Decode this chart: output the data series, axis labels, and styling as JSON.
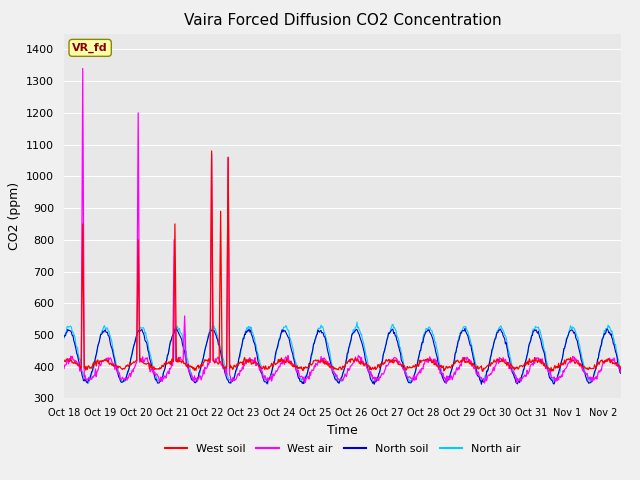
{
  "title": "Vaira Forced Diffusion CO2 Concentration",
  "xlabel": "Time",
  "ylabel": "CO2 (ppm)",
  "ylim": [
    300,
    1450
  ],
  "yticks": [
    300,
    400,
    500,
    600,
    700,
    800,
    900,
    1000,
    1100,
    1200,
    1300,
    1400
  ],
  "annotation_text": "VR_fd",
  "colors": {
    "west_soil": "#ff0000",
    "west_air": "#ff00ff",
    "north_soil": "#0000cc",
    "north_air": "#00ccff"
  },
  "legend_labels": [
    "West soil",
    "West air",
    "North soil",
    "North air"
  ],
  "x_tick_labels": [
    "Oct 18",
    "Oct 19",
    "Oct 20",
    "Oct 21",
    "Oct 22",
    "Oct 23",
    "Oct 24",
    "Oct 25",
    "Oct 26",
    "Oct 27",
    "Oct 28",
    "Oct 29",
    "Oct 30",
    "Oct 31",
    "Nov 1",
    "Nov 2"
  ],
  "num_days": 15.5,
  "num_points": 744,
  "fig_bg": "#f0f0f0",
  "ax_bg": "#e8e8e8",
  "grid_color": "#ffffff"
}
